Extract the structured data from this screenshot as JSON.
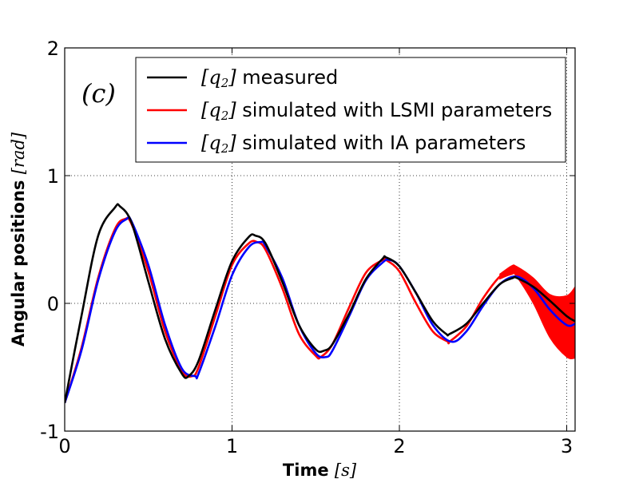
{
  "chart_data": {
    "type": "line",
    "panel_label": "(c)",
    "xlabel": {
      "text": "Time ",
      "unit": "[s]"
    },
    "ylabel": {
      "text": "Angular positions ",
      "unit": "[rad]"
    },
    "xlim": [
      0,
      3.05
    ],
    "ylim": [
      -1,
      2
    ],
    "x_ticks": [
      0,
      1,
      2,
      3
    ],
    "y_ticks": [
      -1,
      0,
      1,
      2
    ],
    "x_tick_labels": [
      "0",
      "1",
      "2",
      "3"
    ],
    "y_tick_labels": [
      "-1",
      "0",
      "1",
      "2"
    ],
    "grid": true,
    "legend_position": "upper-right",
    "series": [
      {
        "name": "[q2]  measured",
        "legend_math": "[q2]",
        "legend_text": "  measured",
        "color": "#000000",
        "x": [
          0,
          0.1,
          0.2,
          0.3,
          0.33,
          0.4,
          0.5,
          0.6,
          0.7,
          0.74,
          0.8,
          0.9,
          1.0,
          1.1,
          1.14,
          1.2,
          1.3,
          1.4,
          1.5,
          1.55,
          1.6,
          1.7,
          1.8,
          1.9,
          1.92,
          2.0,
          2.1,
          2.2,
          2.28,
          2.3,
          2.4,
          2.5,
          2.6,
          2.68,
          2.7,
          2.8,
          2.9,
          3.0,
          3.05
        ],
        "y": [
          -0.78,
          -0.1,
          0.53,
          0.75,
          0.76,
          0.63,
          0.17,
          -0.28,
          -0.55,
          -0.57,
          -0.45,
          -0.05,
          0.33,
          0.52,
          0.53,
          0.47,
          0.17,
          -0.17,
          -0.36,
          -0.37,
          -0.32,
          -0.08,
          0.19,
          0.35,
          0.36,
          0.29,
          0.08,
          -0.14,
          -0.24,
          -0.24,
          -0.16,
          0.0,
          0.15,
          0.2,
          0.2,
          0.13,
          0.02,
          -0.1,
          -0.14
        ]
      },
      {
        "name": "[q2] simulated with LSMI parameters",
        "legend_math": "[q2]",
        "legend_text": " simulated with LSMI parameters",
        "color": "#ff0000",
        "x": [
          0,
          0.1,
          0.2,
          0.3,
          0.36,
          0.4,
          0.5,
          0.6,
          0.7,
          0.76,
          0.8,
          0.9,
          1.0,
          1.1,
          1.15,
          1.2,
          1.3,
          1.4,
          1.5,
          1.53,
          1.6,
          1.7,
          1.8,
          1.9,
          1.92,
          2.0,
          2.1,
          2.2,
          2.29,
          2.3,
          2.4,
          2.5,
          2.6,
          2.67,
          2.7,
          2.8,
          2.9,
          3.0,
          3.05
        ],
        "y": [
          -0.78,
          -0.35,
          0.2,
          0.58,
          0.66,
          0.62,
          0.25,
          -0.22,
          -0.53,
          -0.57,
          -0.5,
          -0.1,
          0.3,
          0.47,
          0.48,
          0.42,
          0.12,
          -0.24,
          -0.41,
          -0.42,
          -0.32,
          -0.03,
          0.24,
          0.34,
          0.34,
          0.25,
          0.0,
          -0.22,
          -0.3,
          -0.3,
          -0.18,
          0.04,
          0.21,
          0.26,
          0.25,
          0.1,
          -0.1,
          -0.18,
          -0.15
        ],
        "band": {
          "from_x": 2.55,
          "half_widths": [
            [
              2.55,
              0.01
            ],
            [
              2.7,
              0.04
            ],
            [
              2.8,
              0.1
            ],
            [
              2.9,
              0.17
            ],
            [
              3.0,
              0.24
            ],
            [
              3.05,
              0.28
            ]
          ]
        }
      },
      {
        "name": "[q2] simulated with IA parameters",
        "legend_math": "[q2]",
        "legend_text": " simulated with IA parameters",
        "color": "#0000ff",
        "x": [
          0,
          0.1,
          0.2,
          0.3,
          0.37,
          0.4,
          0.5,
          0.6,
          0.7,
          0.78,
          0.8,
          0.9,
          1.0,
          1.1,
          1.17,
          1.2,
          1.3,
          1.4,
          1.5,
          1.56,
          1.6,
          1.7,
          1.8,
          1.9,
          1.94,
          2.0,
          2.1,
          2.2,
          2.31,
          2.4,
          2.5,
          2.6,
          2.7,
          2.8,
          2.9,
          3.0,
          3.05
        ],
        "y": [
          -0.78,
          -0.37,
          0.18,
          0.56,
          0.66,
          0.64,
          0.3,
          -0.17,
          -0.51,
          -0.57,
          -0.55,
          -0.18,
          0.22,
          0.44,
          0.48,
          0.45,
          0.2,
          -0.17,
          -0.39,
          -0.42,
          -0.37,
          -0.1,
          0.18,
          0.32,
          0.34,
          0.29,
          0.08,
          -0.17,
          -0.3,
          -0.22,
          -0.02,
          0.15,
          0.21,
          0.12,
          -0.05,
          -0.17,
          -0.16
        ]
      }
    ]
  }
}
